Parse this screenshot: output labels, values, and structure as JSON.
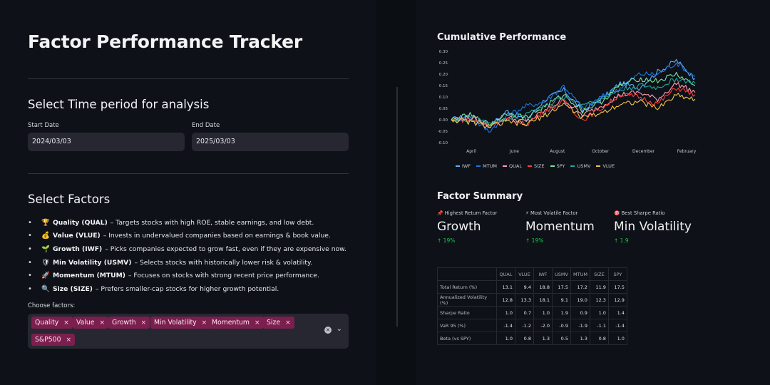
{
  "header": {
    "title": "Factor Performance Tracker"
  },
  "time_period": {
    "heading": "Select Time period for analysis",
    "start_label": "Start Date",
    "start_value": "2024/03/03",
    "end_label": "End Date",
    "end_value": "2025/03/03"
  },
  "factors_section": {
    "heading": "Select Factors",
    "items": [
      {
        "icon": "trophy-icon",
        "glyph": "🏆",
        "name": "Quality (QUAL)",
        "desc": "– Targets stocks with high ROE, stable earnings, and low debt."
      },
      {
        "icon": "money-bag-icon",
        "glyph": "💰",
        "name": "Value (VLUE)",
        "desc": "– Invests in undervalued companies based on earnings & book value."
      },
      {
        "icon": "seedling-icon",
        "glyph": "🌱",
        "name": "Growth (IWF)",
        "desc": "– Picks companies expected to grow fast, even if they are expensive now."
      },
      {
        "icon": "shield-icon",
        "glyph": "🛡",
        "name": "Min Volatility (USMV)",
        "desc": "– Selects stocks with historically lower risk & volatility."
      },
      {
        "icon": "rocket-icon",
        "glyph": "🚀",
        "name": "Momentum (MTUM)",
        "desc": "– Focuses on stocks with strong recent price performance."
      },
      {
        "icon": "magnifier-icon",
        "glyph": "🔍",
        "name": "Size (SIZE)",
        "desc": "– Prefers smaller-cap stocks for higher growth potential."
      }
    ],
    "choose_label": "Choose factors:",
    "selected": [
      "Quality",
      "Value",
      "Growth",
      "Min Volatility",
      "Momentum",
      "Size",
      "S&P500"
    ],
    "remove_glyph": "×",
    "clear_glyph": "×",
    "chevron_glyph": "⌄"
  },
  "chart_heading": "Cumulative Performance",
  "chart_data": {
    "type": "line",
    "title": "Cumulative Performance",
    "x_ticks": [
      "April",
      "June",
      "August",
      "October",
      "December",
      "February"
    ],
    "y_ticks": [
      "0.30",
      "0.25",
      "0.20",
      "0.15",
      "0.10",
      "0.05",
      "0.00",
      "-0.05",
      "-0.10"
    ],
    "ylim": [
      -0.1,
      0.3
    ],
    "legend_position": "bottom",
    "series": [
      {
        "name": "IWF",
        "color": "#5ab0ff",
        "values": [
          0.0,
          0.02,
          -0.03,
          0.04,
          0.0,
          0.09,
          0.13,
          0.04,
          0.09,
          0.16,
          0.14,
          0.21,
          0.26,
          0.18
        ]
      },
      {
        "name": "MTUM",
        "color": "#1f77e0",
        "values": [
          0.0,
          0.01,
          -0.05,
          0.02,
          0.06,
          0.08,
          0.15,
          0.05,
          0.1,
          0.14,
          0.2,
          0.2,
          0.25,
          0.19
        ]
      },
      {
        "name": "QUAL",
        "color": "#ff9eb5",
        "values": [
          0.0,
          0.01,
          -0.02,
          0.01,
          -0.01,
          0.04,
          0.09,
          0.02,
          0.06,
          0.11,
          0.12,
          0.09,
          0.16,
          0.12
        ]
      },
      {
        "name": "SIZE",
        "color": "#ff3d3d",
        "values": [
          0.0,
          0.0,
          -0.02,
          0.0,
          -0.02,
          0.04,
          0.08,
          0.0,
          0.05,
          0.11,
          0.1,
          0.07,
          0.14,
          0.11
        ]
      },
      {
        "name": "SPY",
        "color": "#7fe5a3",
        "values": [
          0.0,
          0.02,
          -0.02,
          0.03,
          0.01,
          0.06,
          0.11,
          0.04,
          0.08,
          0.15,
          0.18,
          0.17,
          0.2,
          0.15
        ]
      },
      {
        "name": "USMV",
        "color": "#1fa89b",
        "values": [
          0.0,
          0.0,
          -0.01,
          0.0,
          0.03,
          0.06,
          0.1,
          0.07,
          0.09,
          0.13,
          0.15,
          0.14,
          0.18,
          0.16
        ]
      },
      {
        "name": "VLUE",
        "color": "#f5c04a",
        "values": [
          0.0,
          -0.01,
          -0.03,
          -0.01,
          -0.02,
          0.02,
          0.07,
          0.01,
          0.03,
          0.07,
          0.08,
          0.05,
          0.11,
          0.09
        ]
      }
    ]
  },
  "summary": {
    "heading": "Factor Summary",
    "metrics": [
      {
        "icon": "pin-icon",
        "glyph": "📌",
        "label": "Highest Return Factor",
        "value": "Growth",
        "delta": "↑ 19%"
      },
      {
        "icon": "lightning-icon",
        "glyph": "⚡",
        "label": "Most Volatile Factor",
        "value": "Momentum",
        "delta": "↑ 19%"
      },
      {
        "icon": "target-icon",
        "glyph": "🎯",
        "label": "Best Sharpe Ratio",
        "value": "Min Volatility",
        "delta": "↑ 1.9"
      }
    ]
  },
  "table": {
    "columns": [
      "QUAL",
      "VLUE",
      "IWF",
      "USMV",
      "MTUM",
      "SIZE",
      "SPY"
    ],
    "rows": [
      {
        "label": "Total Return (%)",
        "values": [
          "13.1",
          "9.4",
          "18.8",
          "17.5",
          "17.2",
          "11.9",
          "17.5"
        ]
      },
      {
        "label": "Annualized Volatility (%)",
        "values": [
          "12.8",
          "13.3",
          "18.1",
          "9.1",
          "19.0",
          "12.3",
          "12.9"
        ]
      },
      {
        "label": "Sharpe Ratio",
        "values": [
          "1.0",
          "0.7",
          "1.0",
          "1.9",
          "0.9",
          "1.0",
          "1.4"
        ]
      },
      {
        "label": "VaR 95 (%)",
        "values": [
          "-1.4",
          "-1.2",
          "-2.0",
          "-0.9",
          "-1.9",
          "-1.1",
          "-1.4"
        ]
      },
      {
        "label": "Beta (vs SPY)",
        "values": [
          "1.0",
          "0.8",
          "1.3",
          "0.5",
          "1.3",
          "0.8",
          "1.0"
        ]
      }
    ]
  }
}
